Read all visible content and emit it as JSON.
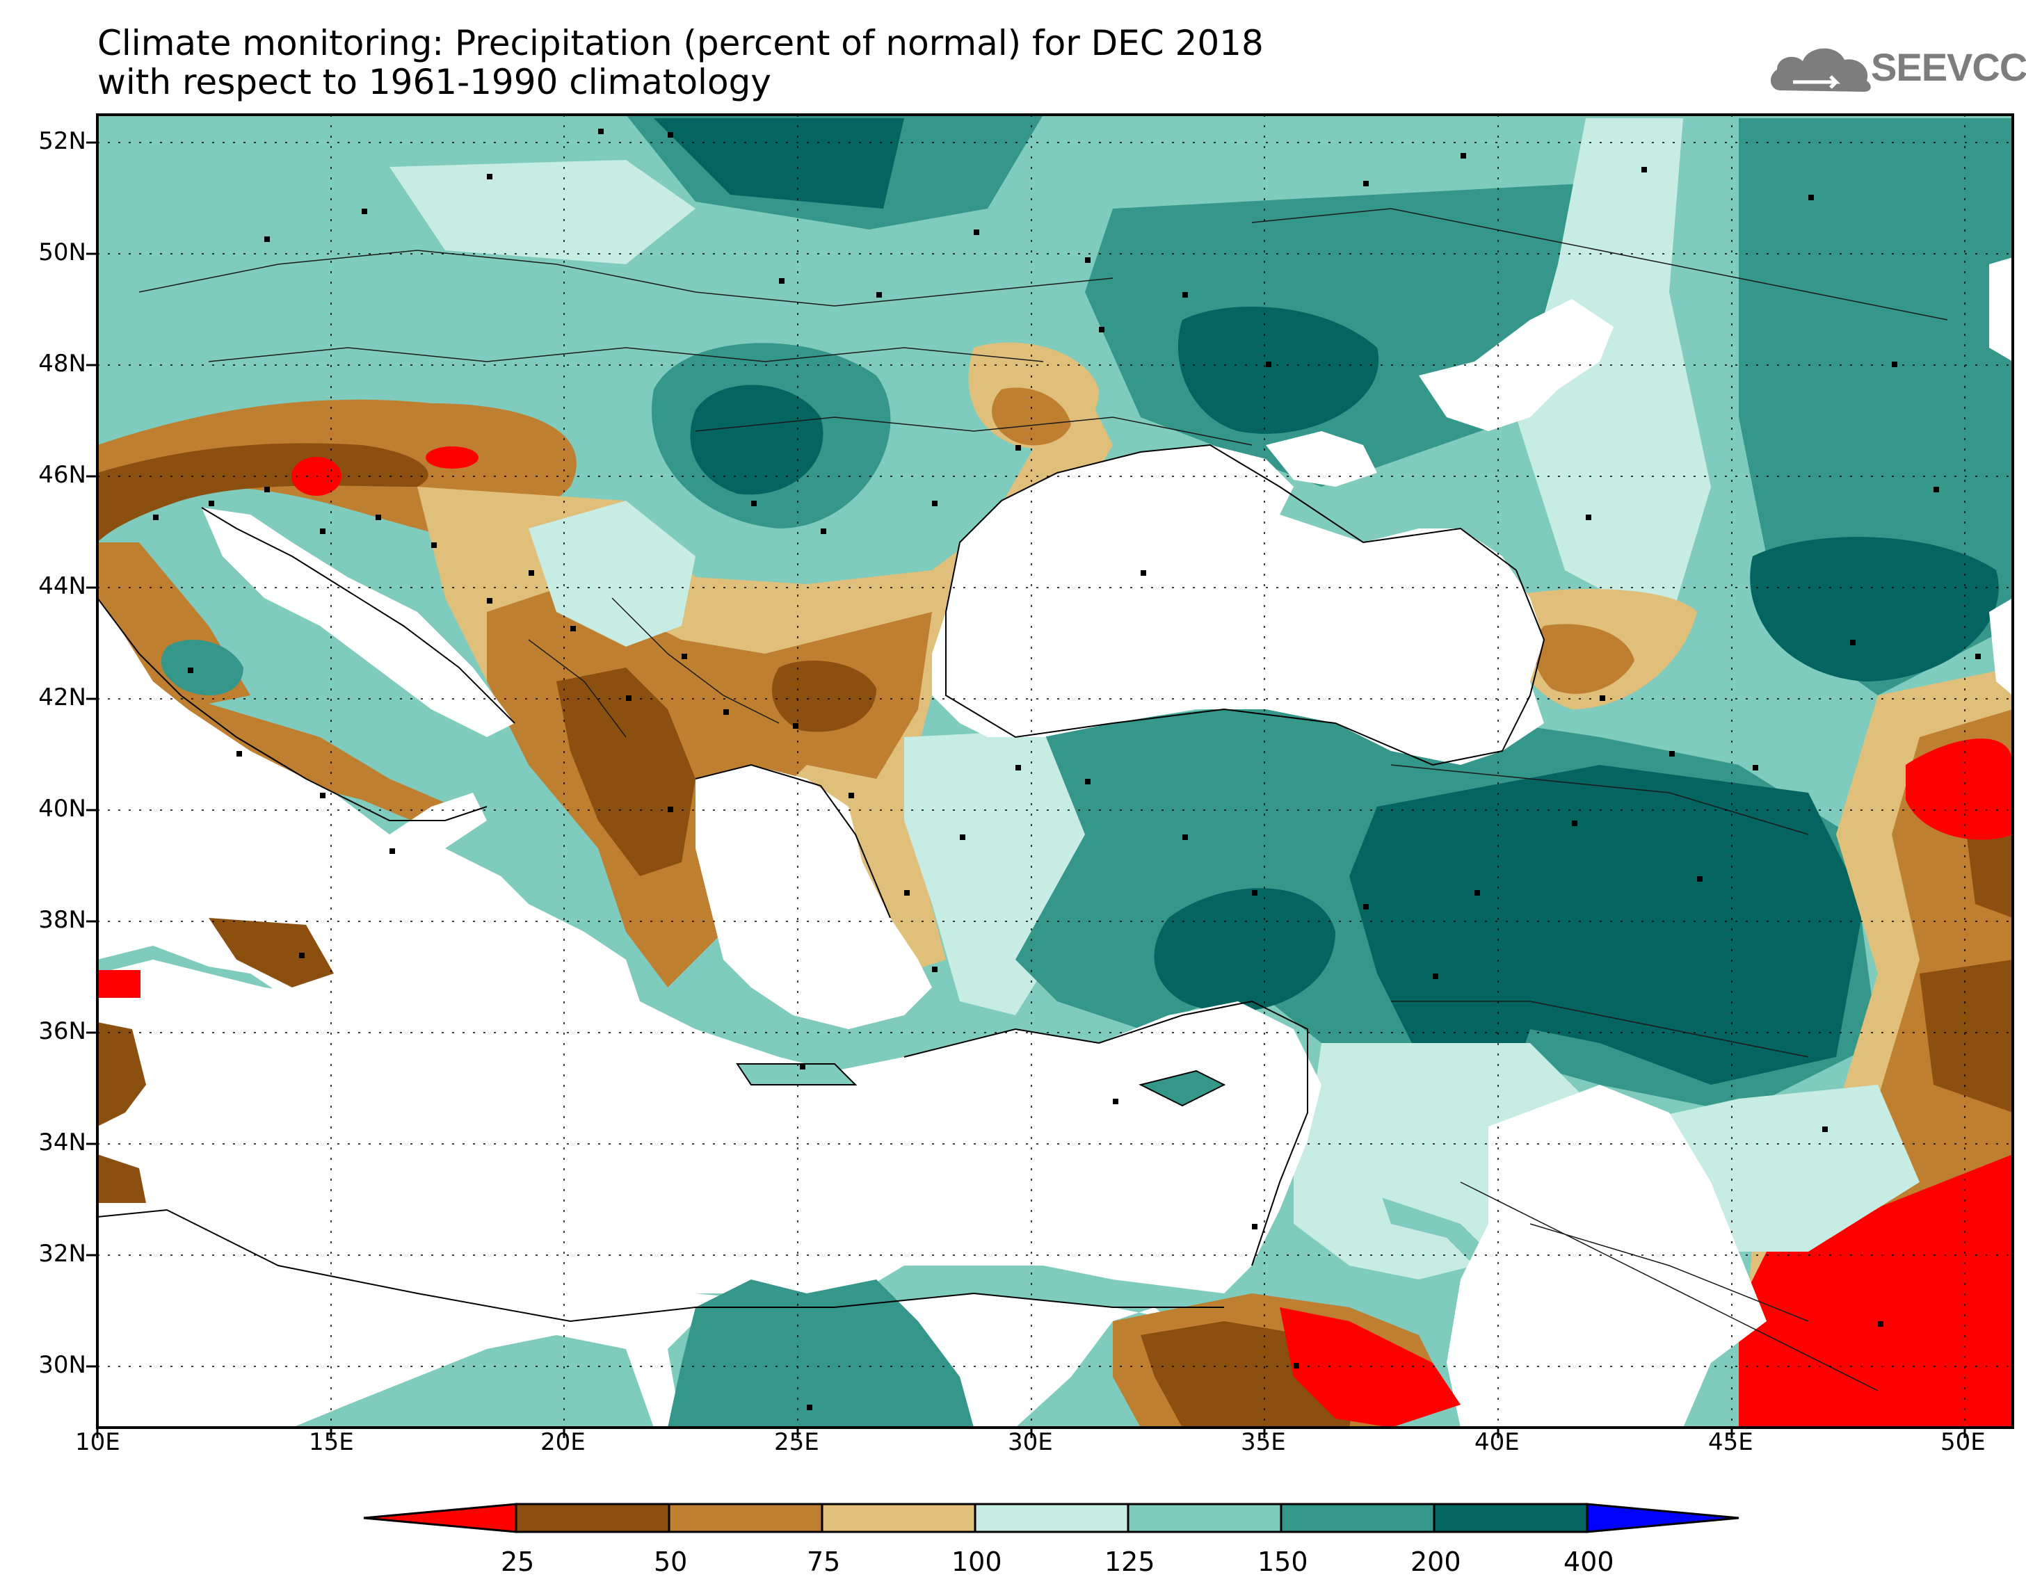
{
  "title": {
    "line1": "Climate monitoring: Precipitation (percent of normal) for DEC 2018",
    "line2": "with respect to 1961-1990 climatology"
  },
  "logo": {
    "text": "SEEVCCC",
    "icon": "cloud-icon"
  },
  "axes": {
    "lat_labels": [
      "52N",
      "50N",
      "48N",
      "46N",
      "44N",
      "42N",
      "40N",
      "38N",
      "36N",
      "34N",
      "32N",
      "30N"
    ],
    "lon_labels": [
      "10E",
      "15E",
      "20E",
      "25E",
      "30E",
      "35E",
      "40E",
      "45E",
      "50E"
    ]
  },
  "colorbar": {
    "labels": [
      "25",
      "50",
      "75",
      "100",
      "125",
      "150",
      "200",
      "400"
    ],
    "colors": [
      "#ff0000",
      "#8b4f0f",
      "#bf7f30",
      "#dfbf7a",
      "#c6ece4",
      "#7fcbbd",
      "#349789",
      "#036460",
      "#0000ff"
    ]
  },
  "chart_data": {
    "type": "heatmap",
    "title": "Climate monitoring: Precipitation (percent of normal) for DEC 2018",
    "subtitle": "with respect to 1961-1990 climatology",
    "x_range": [
      "10E",
      "51E"
    ],
    "y_range": [
      "29N",
      "52.5N"
    ],
    "levels": [
      25,
      50,
      75,
      100,
      125,
      150,
      200,
      400
    ],
    "station_markers": true,
    "grid": "dotted"
  }
}
